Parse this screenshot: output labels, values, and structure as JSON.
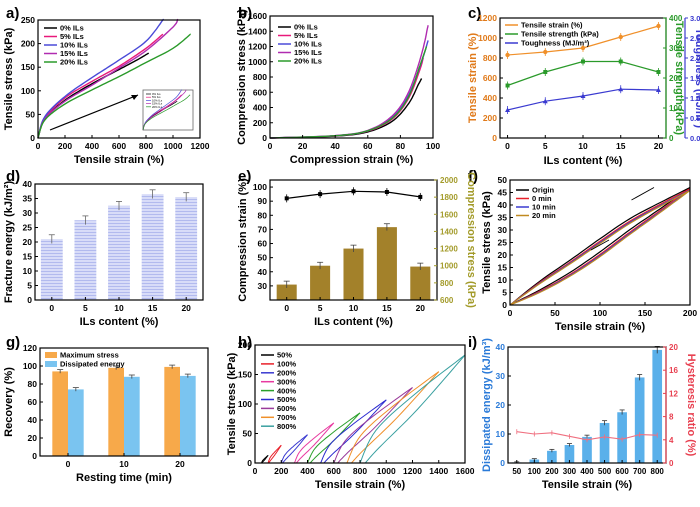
{
  "figure": {
    "panel_labels": [
      "a)",
      "b)",
      "c)",
      "d)",
      "e)",
      "f)",
      "g)",
      "h)",
      "i)"
    ]
  },
  "chart_data": [
    {
      "id": "a",
      "type": "line",
      "xlabel": "Tensile strain (%)",
      "ylabel": "Tensile stress (kPa)",
      "xlim": [
        0,
        1200
      ],
      "ylim": [
        0,
        250
      ],
      "xticks": [
        "0",
        "200",
        "400",
        "600",
        "800",
        "1000",
        "1200"
      ],
      "yticks": [
        "0",
        "50",
        "100",
        "150",
        "200",
        "250"
      ],
      "legend": {
        "position": "top-left",
        "entries": [
          "0% ILs",
          "5% ILs",
          "10% ILs",
          "15% ILs",
          "20% ILs"
        ]
      },
      "colors": [
        "#000000",
        "#e8197b",
        "#4a4ad8",
        "#b02cb0",
        "#2a9a2a"
      ],
      "series": [
        {
          "name": "0% ILs",
          "points": [
            [
              0,
              0
            ],
            [
              50,
              40
            ],
            [
              200,
              80
            ],
            [
              400,
              115
            ],
            [
              600,
              145
            ],
            [
              750,
              168
            ],
            [
              820,
              180
            ]
          ]
        },
        {
          "name": "5% ILs",
          "points": [
            [
              0,
              0
            ],
            [
              50,
              42
            ],
            [
              200,
              85
            ],
            [
              400,
              120
            ],
            [
              600,
              152
            ],
            [
              800,
              190
            ],
            [
              925,
              220
            ]
          ]
        },
        {
          "name": "10% ILs",
          "points": [
            [
              0,
              0
            ],
            [
              50,
              45
            ],
            [
              200,
              88
            ],
            [
              400,
              128
            ],
            [
              600,
              165
            ],
            [
              800,
              205
            ],
            [
              930,
              252
            ]
          ]
        },
        {
          "name": "15% ILs",
          "points": [
            [
              0,
              0
            ],
            [
              50,
              40
            ],
            [
              200,
              78
            ],
            [
              400,
              112
            ],
            [
              600,
              148
            ],
            [
              800,
              185
            ],
            [
              1000,
              235
            ],
            [
              1035,
              252
            ]
          ]
        },
        {
          "name": "20% ILs",
          "points": [
            [
              0,
              0
            ],
            [
              50,
              38
            ],
            [
              200,
              72
            ],
            [
              400,
              102
            ],
            [
              600,
              130
            ],
            [
              800,
              160
            ],
            [
              1000,
              190
            ],
            [
              1130,
              220
            ]
          ]
        }
      ],
      "inset": {
        "legend": [
          "0% ILs",
          "5% ILs",
          "10% ILs",
          "15% ILs",
          "20% ILs"
        ]
      }
    },
    {
      "id": "b",
      "type": "line",
      "xlabel": "Compression strain (%)",
      "ylabel": "Compression stress (kPa)",
      "xlim": [
        0,
        100
      ],
      "ylim": [
        0,
        1600
      ],
      "xticks": [
        "0",
        "20",
        "40",
        "60",
        "80",
        "100"
      ],
      "yticks": [
        "0",
        "200",
        "400",
        "600",
        "800",
        "1000",
        "1200",
        "1400",
        "1600"
      ],
      "legend": {
        "position": "top-left",
        "entries": [
          "0% ILs",
          "5% ILs",
          "10% ILs",
          "15% ILs",
          "20% ILs"
        ]
      },
      "colors": [
        "#000000",
        "#e8197b",
        "#4a4ad8",
        "#b02cb0",
        "#2a9a2a"
      ],
      "series": [
        {
          "name": "0% ILs",
          "points": [
            [
              0,
              0
            ],
            [
              40,
              25
            ],
            [
              60,
              80
            ],
            [
              75,
              220
            ],
            [
              85,
              450
            ],
            [
              91,
              700
            ],
            [
              93,
              780
            ]
          ]
        },
        {
          "name": "5% ILs",
          "points": [
            [
              0,
              0
            ],
            [
              40,
              28
            ],
            [
              60,
              90
            ],
            [
              75,
              250
            ],
            [
              85,
              520
            ],
            [
              92,
              900
            ],
            [
              94,
              1050
            ]
          ]
        },
        {
          "name": "10% ILs",
          "points": [
            [
              0,
              0
            ],
            [
              40,
              30
            ],
            [
              60,
              95
            ],
            [
              75,
              270
            ],
            [
              85,
              560
            ],
            [
              93,
              1000
            ],
            [
              97,
              1280
            ]
          ]
        },
        {
          "name": "15% ILs",
          "points": [
            [
              0,
              0
            ],
            [
              40,
              32
            ],
            [
              60,
              100
            ],
            [
              75,
              290
            ],
            [
              85,
              600
            ],
            [
              93,
              1100
            ],
            [
              97,
              1480
            ]
          ]
        },
        {
          "name": "20% ILs",
          "points": [
            [
              0,
              0
            ],
            [
              40,
              30
            ],
            [
              60,
              95
            ],
            [
              75,
              260
            ],
            [
              85,
              540
            ],
            [
              92,
              950
            ],
            [
              96,
              1200
            ]
          ]
        }
      ]
    },
    {
      "id": "c",
      "type": "line",
      "xlabel": "ILs content (%)",
      "ylabel_left": "Tensile strain (%)",
      "ylabel_right1": "Tensile strength (kPa)",
      "ylabel_right2": "Toughness (MJ/m³)",
      "x": [
        0,
        5,
        10,
        15,
        20
      ],
      "xticks": [
        "0",
        "5",
        "10",
        "15",
        "20"
      ],
      "ylim_left": [
        0,
        1200
      ],
      "yticks_left": [
        "0",
        "200",
        "400",
        "600",
        "800",
        "1000",
        "1200"
      ],
      "ylim_right1": [
        0,
        400
      ],
      "yticks_right1": [
        "0",
        "100",
        "200",
        "300",
        "400"
      ],
      "ylim_right2": [
        0,
        3.0
      ],
      "yticks_right2": [
        "0.0",
        "0.5",
        "1.0",
        "1.5",
        "2.0",
        "2.5",
        "3.0"
      ],
      "legend": {
        "position": "top-left",
        "entries": [
          "Tensile strain (%)",
          "Tensile strength (kPa)",
          "Toughness (MJ/m³)"
        ]
      },
      "colors": [
        "#f0902a",
        "#2a9a2a",
        "#3a3ad0"
      ],
      "series": [
        {
          "name": "Tensile strain (%)",
          "axis": "left",
          "values": [
            830,
            860,
            900,
            1010,
            1120
          ]
        },
        {
          "name": "Tensile strength (kPa)",
          "axis": "right1",
          "values": [
            175,
            220,
            255,
            255,
            220
          ]
        },
        {
          "name": "Toughness (MJ/m³)",
          "axis": "right2",
          "values": [
            0.7,
            0.92,
            1.05,
            1.22,
            1.2
          ]
        }
      ]
    },
    {
      "id": "d",
      "type": "bar",
      "xlabel": "ILs content (%)",
      "ylabel": "Fracture energy (kJ/m²)",
      "categories": [
        "0",
        "5",
        "10",
        "15",
        "20"
      ],
      "values": [
        21,
        27.5,
        32.5,
        36.5,
        35.5
      ],
      "errors": [
        1.5,
        1.5,
        1.5,
        1.5,
        1.5
      ],
      "ylim": [
        0,
        40
      ],
      "yticks": [
        "0",
        "5",
        "10",
        "15",
        "20",
        "25",
        "30",
        "35",
        "40"
      ],
      "colors": {
        "bar": "#d8dcf8",
        "stripe": "#a9b2ec"
      }
    },
    {
      "id": "e",
      "type": "bar",
      "xlabel": "ILs content (%)",
      "ylabel_left": "Compression strain (%)",
      "ylabel_right": "Compression stress (kPa)",
      "categories": [
        "0",
        "5",
        "10",
        "15",
        "20"
      ],
      "line_values": [
        92,
        95,
        97,
        96.5,
        93
      ],
      "bar_values": [
        780,
        1000,
        1200,
        1450,
        990
      ],
      "ylim_left": [
        20,
        105
      ],
      "yticks_left": [
        "30",
        "40",
        "50",
        "60",
        "70",
        "80",
        "90",
        "100"
      ],
      "ylim_right": [
        600,
        2000
      ],
      "yticks_right": [
        "600",
        "800",
        "1000",
        "1200",
        "1400",
        "1600",
        "1800",
        "2000"
      ],
      "colors": {
        "bar": "#a3812a",
        "line": "#000000",
        "right_axis": "#a39b2a"
      }
    },
    {
      "id": "f",
      "type": "line",
      "xlabel": "Tensile strain (%)",
      "ylabel": "Tensile stress (kPa)",
      "xlim": [
        0,
        200
      ],
      "ylim": [
        0,
        50
      ],
      "xticks": [
        "0",
        "50",
        "100",
        "150",
        "200"
      ],
      "yticks": [
        "0",
        "5",
        "10",
        "15",
        "20",
        "25",
        "30",
        "35",
        "40",
        "45",
        "50"
      ],
      "legend": {
        "position": "top-left",
        "entries": [
          "Origin",
          "0 min",
          "10 min",
          "20 min"
        ]
      },
      "colors": [
        "#000000",
        "#e8202a",
        "#3a3ad0",
        "#c08a20"
      ],
      "series": [
        {
          "name": "Origin",
          "values": [
            0.0,
            9.5,
            18.0,
            26.5,
            34.5,
            41.0,
            47.0
          ]
        },
        {
          "name": "0 min",
          "values": [
            0.0,
            9.0,
            17.2,
            25.5,
            33.5,
            40.3,
            46.5
          ]
        },
        {
          "name": "10 min",
          "values": [
            0.0,
            8.7,
            16.8,
            25.0,
            33.0,
            39.8,
            46.0
          ]
        },
        {
          "name": "20 min",
          "values": [
            0.0,
            8.5,
            16.5,
            24.6,
            32.6,
            39.5,
            45.8
          ]
        }
      ],
      "x": [
        0,
        33,
        67,
        100,
        133,
        167,
        200
      ]
    },
    {
      "id": "g",
      "type": "bar",
      "xlabel": "Resting time (min)",
      "ylabel": "Recovery (%)",
      "categories": [
        "0",
        "10",
        "20"
      ],
      "series": [
        {
          "name": "Maximum stress",
          "values": [
            94,
            98,
            99
          ]
        },
        {
          "name": "Dissipated energy",
          "values": [
            74,
            88,
            89
          ]
        }
      ],
      "ylim": [
        0,
        120
      ],
      "yticks": [
        "0",
        "20",
        "40",
        "60",
        "80",
        "100",
        "120"
      ],
      "legend": {
        "position": "top-left"
      },
      "colors": [
        "#f7a94a",
        "#7ac4f0"
      ]
    },
    {
      "id": "h",
      "type": "line",
      "xlabel": "Tensile strain (%)",
      "ylabel": "Tensile stress (kPa)",
      "xlim": [
        0,
        1600
      ],
      "ylim": [
        0,
        200
      ],
      "xticks": [
        "0",
        "200",
        "400",
        "600",
        "800",
        "1000",
        "1200",
        "1400",
        "1600"
      ],
      "yticks": [
        "0",
        "50",
        "100",
        "150",
        "200"
      ],
      "legend": {
        "position": "top-left",
        "entries": [
          "50%",
          "100%",
          "200%",
          "300%",
          "400%",
          "500%",
          "600%",
          "700%",
          "800%"
        ]
      },
      "colors": [
        "#000000",
        "#e8202a",
        "#3a3ad0",
        "#e83aa0",
        "#2aa02a",
        "#2a2ad0",
        "#9a3a9a",
        "#f0902a",
        "#3aa0a0"
      ],
      "series": [
        {
          "name": "50%",
          "start": 50,
          "end": 100,
          "peak": 13
        },
        {
          "name": "100%",
          "start": 100,
          "end": 200,
          "peak": 30
        },
        {
          "name": "200%",
          "start": 200,
          "end": 400,
          "peak": 48
        },
        {
          "name": "300%",
          "start": 300,
          "end": 600,
          "peak": 68
        },
        {
          "name": "400%",
          "start": 400,
          "end": 800,
          "peak": 85
        },
        {
          "name": "500%",
          "start": 500,
          "end": 1000,
          "peak": 107
        },
        {
          "name": "600%",
          "start": 600,
          "end": 1200,
          "peak": 128
        },
        {
          "name": "700%",
          "start": 700,
          "end": 1400,
          "peak": 155
        },
        {
          "name": "800%",
          "start": 800,
          "end": 1600,
          "peak": 183
        }
      ]
    },
    {
      "id": "i",
      "type": "bar",
      "xlabel": "Tensile strain (%)",
      "ylabel_left": "Dissipated energy (kJ/m³)",
      "ylabel_right": "Hysteresis ratio (%)",
      "categories": [
        "50",
        "100",
        "200",
        "300",
        "400",
        "500",
        "600",
        "700",
        "800"
      ],
      "bar_values": [
        0.2,
        1.2,
        4.2,
        6.2,
        9.0,
        13.8,
        17.5,
        29.5,
        39.0
      ],
      "errors": [
        0.2,
        0.3,
        0.5,
        0.5,
        0.6,
        0.8,
        0.8,
        1.0,
        1.2
      ],
      "line_values": [
        5.4,
        5.0,
        5.2,
        4.6,
        4.0,
        4.5,
        4.1,
        4.9,
        4.8
      ],
      "ylim_left": [
        0,
        40
      ],
      "yticks_left": [
        "0",
        "10",
        "20",
        "30",
        "40"
      ],
      "ylim_right": [
        0,
        20
      ],
      "yticks_right": [
        "0",
        "4",
        "8",
        "12",
        "16",
        "20"
      ],
      "colors": {
        "bar": "#5ab0ea",
        "line": "#f07080",
        "left_axis": "#2a7ad8",
        "right_axis": "#e84050"
      }
    }
  ]
}
